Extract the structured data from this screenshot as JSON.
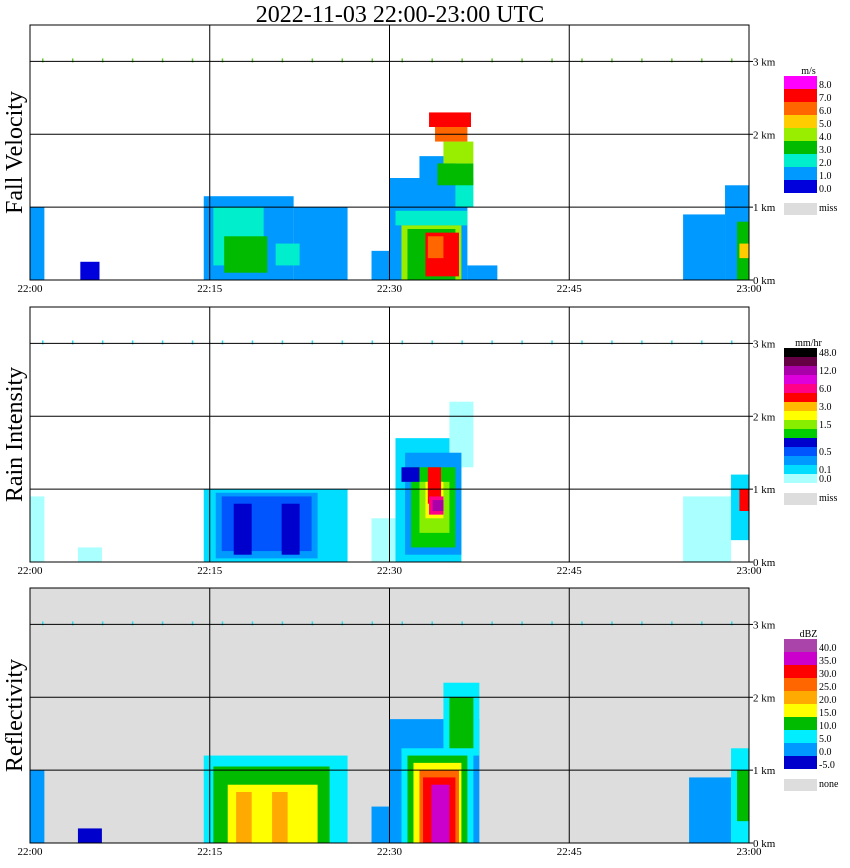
{
  "title": "2022-11-03   22:00-23:00 UTC",
  "x_ticks": [
    "22:00",
    "22:15",
    "22:30",
    "22:45",
    "23:00"
  ],
  "y_ticks": [
    "3 km",
    "2 km",
    "1 km",
    "0 km"
  ],
  "colors": {
    "missing": "#dddddd",
    "frame": "#000000"
  },
  "chart_data": [
    {
      "type": "heatmap",
      "ylabel": "Fall Velocity",
      "x_range": [
        "22:00",
        "23:00"
      ],
      "y_range_km": [
        0,
        3.5
      ],
      "grid": true,
      "legend": {
        "unit": "m/s",
        "bins": [
          {
            "label": "8.0",
            "color": "#ff00ff"
          },
          {
            "label": "7.0",
            "color": "#ff0000"
          },
          {
            "label": "6.0",
            "color": "#ff6600"
          },
          {
            "label": "5.0",
            "color": "#ffcc00"
          },
          {
            "label": "4.0",
            "color": "#99ee00"
          },
          {
            "label": "3.0",
            "color": "#00bb00"
          },
          {
            "label": "2.0",
            "color": "#00eecc"
          },
          {
            "label": "1.0",
            "color": "#0099ff"
          },
          {
            "label": "0.0",
            "color": "#0000dd"
          }
        ],
        "missing_label": "miss",
        "missing_color": "#dddddd"
      },
      "background": "#ffffff",
      "cells": [
        {
          "t": [
            0,
            1.2
          ],
          "h": [
            0,
            1.0
          ],
          "c": "#0099ff"
        },
        {
          "t": [
            4.2,
            5.8
          ],
          "h": [
            0,
            0.25
          ],
          "c": "#0000dd"
        },
        {
          "t": [
            14.5,
            22
          ],
          "h": [
            0,
            1.15
          ],
          "c": "#0099ff"
        },
        {
          "t": [
            22,
            26.5
          ],
          "h": [
            0,
            1.0
          ],
          "c": "#0099ff"
        },
        {
          "t": [
            15.3,
            19.5
          ],
          "h": [
            0.2,
            1.0
          ],
          "c": "#00eecc"
        },
        {
          "t": [
            16.2,
            19.8
          ],
          "h": [
            0.1,
            0.6
          ],
          "c": "#00bb00"
        },
        {
          "t": [
            20.5,
            22.5
          ],
          "h": [
            0.2,
            0.5
          ],
          "c": "#00eecc"
        },
        {
          "t": [
            28.5,
            30
          ],
          "h": [
            0,
            0.4
          ],
          "c": "#0099ff"
        },
        {
          "t": [
            30,
            36.5
          ],
          "h": [
            0,
            1.4
          ],
          "c": "#0099ff"
        },
        {
          "t": [
            32.5,
            35.5
          ],
          "h": [
            1.0,
            1.7
          ],
          "c": "#0099ff"
        },
        {
          "t": [
            35.5,
            37
          ],
          "h": [
            1.0,
            1.4
          ],
          "c": "#00eecc"
        },
        {
          "t": [
            30.5,
            36.5
          ],
          "h": [
            0.75,
            0.95
          ],
          "c": "#00eecc"
        },
        {
          "t": [
            31,
            36
          ],
          "h": [
            0,
            0.75
          ],
          "c": "#99ee00"
        },
        {
          "t": [
            31.5,
            35.5
          ],
          "h": [
            0,
            0.7
          ],
          "c": "#00bb00"
        },
        {
          "t": [
            33,
            35.8
          ],
          "h": [
            0.05,
            0.65
          ],
          "c": "#ff0000"
        },
        {
          "t": [
            33.2,
            34.5
          ],
          "h": [
            0.3,
            0.6
          ],
          "c": "#ff6600"
        },
        {
          "t": [
            34,
            37
          ],
          "h": [
            1.3,
            1.6
          ],
          "c": "#00bb00"
        },
        {
          "t": [
            34.5,
            37
          ],
          "h": [
            1.6,
            1.9
          ],
          "c": "#99ee00"
        },
        {
          "t": [
            33.8,
            36.5
          ],
          "h": [
            1.9,
            2.1
          ],
          "c": "#ff6600"
        },
        {
          "t": [
            33.3,
            36.8
          ],
          "h": [
            2.1,
            2.3
          ],
          "c": "#ff0000"
        },
        {
          "t": [
            36.5,
            39
          ],
          "h": [
            0,
            0.2
          ],
          "c": "#0099ff"
        },
        {
          "t": [
            54.5,
            58
          ],
          "h": [
            0,
            0.9
          ],
          "c": "#0099ff"
        },
        {
          "t": [
            58,
            60
          ],
          "h": [
            0,
            1.3
          ],
          "c": "#0099ff"
        },
        {
          "t": [
            59,
            60
          ],
          "h": [
            0,
            0.8
          ],
          "c": "#00bb00"
        },
        {
          "t": [
            59.2,
            60
          ],
          "h": [
            0.3,
            0.5
          ],
          "c": "#ffcc00"
        }
      ]
    },
    {
      "type": "heatmap",
      "ylabel": "Rain Intensity",
      "x_range": [
        "22:00",
        "23:00"
      ],
      "y_range_km": [
        0,
        3.5
      ],
      "grid": true,
      "legend": {
        "unit": "mm/hr",
        "bins": [
          {
            "label": "48.0",
            "color": "#000000"
          },
          {
            "label": "",
            "color": "#660044"
          },
          {
            "label": "12.0",
            "color": "#aa00aa"
          },
          {
            "label": "",
            "color": "#dd00dd"
          },
          {
            "label": "6.0",
            "color": "#ff0088"
          },
          {
            "label": "",
            "color": "#ff0000"
          },
          {
            "label": "3.0",
            "color": "#ffbb00"
          },
          {
            "label": "",
            "color": "#ffff00"
          },
          {
            "label": "1.5",
            "color": "#88ee00"
          },
          {
            "label": "",
            "color": "#00cc00"
          },
          {
            "label": "",
            "color": "#0000cc"
          },
          {
            "label": "0.5",
            "color": "#0055ff"
          },
          {
            "label": "",
            "color": "#0099ff"
          },
          {
            "label": "0.1",
            "color": "#00ddff"
          },
          {
            "label": "0.0",
            "color": "#aaffff"
          }
        ],
        "missing_label": "miss",
        "missing_color": "#dddddd"
      },
      "background": "#ffffff",
      "cells": [
        {
          "t": [
            0,
            1.2
          ],
          "h": [
            0,
            0.9
          ],
          "c": "#aaffff"
        },
        {
          "t": [
            4,
            6
          ],
          "h": [
            0,
            0.2
          ],
          "c": "#aaffff"
        },
        {
          "t": [
            14.5,
            26.5
          ],
          "h": [
            0,
            1.0
          ],
          "c": "#00ddff"
        },
        {
          "t": [
            15.5,
            24
          ],
          "h": [
            0.05,
            0.95
          ],
          "c": "#0099ff"
        },
        {
          "t": [
            16,
            23.5
          ],
          "h": [
            0.15,
            0.9
          ],
          "c": "#0055ff"
        },
        {
          "t": [
            17,
            18.5
          ],
          "h": [
            0.1,
            0.8
          ],
          "c": "#0000cc"
        },
        {
          "t": [
            21,
            22.5
          ],
          "h": [
            0.1,
            0.8
          ],
          "c": "#0000cc"
        },
        {
          "t": [
            28.5,
            30.5
          ],
          "h": [
            0,
            0.6
          ],
          "c": "#aaffff"
        },
        {
          "t": [
            30.5,
            36
          ],
          "h": [
            0,
            1.7
          ],
          "c": "#00ddff"
        },
        {
          "t": [
            35,
            37
          ],
          "h": [
            1.3,
            2.2
          ],
          "c": "#aaffff"
        },
        {
          "t": [
            31.3,
            36
          ],
          "h": [
            0.1,
            1.5
          ],
          "c": "#0099ff"
        },
        {
          "t": [
            31.8,
            35.5
          ],
          "h": [
            0.2,
            1.3
          ],
          "c": "#00cc00"
        },
        {
          "t": [
            32.5,
            35
          ],
          "h": [
            0.4,
            1.1
          ],
          "c": "#88ee00"
        },
        {
          "t": [
            33,
            34.5
          ],
          "h": [
            0.6,
            1.1
          ],
          "c": "#ffff00"
        },
        {
          "t": [
            33.2,
            34.3
          ],
          "h": [
            0.8,
            1.3
          ],
          "c": "#ff0000"
        },
        {
          "t": [
            33.3,
            34.5
          ],
          "h": [
            0.65,
            0.9
          ],
          "c": "#ff0088"
        },
        {
          "t": [
            33.6,
            34.5
          ],
          "h": [
            0.7,
            0.85
          ],
          "c": "#aa00aa"
        },
        {
          "t": [
            31,
            32.5
          ],
          "h": [
            1.1,
            1.3
          ],
          "c": "#0000cc"
        },
        {
          "t": [
            54.5,
            58.5
          ],
          "h": [
            0,
            0.9
          ],
          "c": "#aaffff"
        },
        {
          "t": [
            58.5,
            60
          ],
          "h": [
            0.3,
            1.2
          ],
          "c": "#00ddff"
        },
        {
          "t": [
            59.2,
            60
          ],
          "h": [
            0.7,
            1.0
          ],
          "c": "#ff0000"
        }
      ]
    },
    {
      "type": "heatmap",
      "ylabel": "Reflectivity",
      "x_range": [
        "22:00",
        "23:00"
      ],
      "y_range_km": [
        0,
        3.5
      ],
      "grid": true,
      "legend": {
        "unit": "dBZ",
        "bins": [
          {
            "label": "40.0",
            "color": "#aa44aa"
          },
          {
            "label": "35.0",
            "color": "#cc00cc"
          },
          {
            "label": "30.0",
            "color": "#ff0000"
          },
          {
            "label": "25.0",
            "color": "#ff6600"
          },
          {
            "label": "20.0",
            "color": "#ffaa00"
          },
          {
            "label": "15.0",
            "color": "#ffff00"
          },
          {
            "label": "10.0",
            "color": "#00bb00"
          },
          {
            "label": "5.0",
            "color": "#00eeff"
          },
          {
            "label": "0.0",
            "color": "#0099ff"
          },
          {
            "label": "-5.0",
            "color": "#0000cc"
          }
        ],
        "missing_label": "none",
        "missing_color": "#dddddd"
      },
      "background": "#dddddd",
      "cells": [
        {
          "t": [
            0,
            1.2
          ],
          "h": [
            0,
            1.0
          ],
          "c": "#0099ff"
        },
        {
          "t": [
            4,
            6
          ],
          "h": [
            0,
            0.2
          ],
          "c": "#0000cc"
        },
        {
          "t": [
            14.5,
            26.5
          ],
          "h": [
            0,
            1.2
          ],
          "c": "#00eeff"
        },
        {
          "t": [
            15.3,
            25
          ],
          "h": [
            0,
            1.05
          ],
          "c": "#00bb00"
        },
        {
          "t": [
            16.5,
            24
          ],
          "h": [
            0,
            0.8
          ],
          "c": "#ffff00"
        },
        {
          "t": [
            17.2,
            18.5
          ],
          "h": [
            0,
            0.7
          ],
          "c": "#ffaa00"
        },
        {
          "t": [
            20.2,
            21.5
          ],
          "h": [
            0,
            0.7
          ],
          "c": "#ffaa00"
        },
        {
          "t": [
            28.5,
            30.5
          ],
          "h": [
            0,
            0.5
          ],
          "c": "#0099ff"
        },
        {
          "t": [
            30,
            37.5
          ],
          "h": [
            0,
            1.7
          ],
          "c": "#0099ff"
        },
        {
          "t": [
            31,
            37
          ],
          "h": [
            0,
            1.3
          ],
          "c": "#00eeff"
        },
        {
          "t": [
            34.5,
            37.5
          ],
          "h": [
            1.2,
            2.2
          ],
          "c": "#00eeff"
        },
        {
          "t": [
            35,
            37
          ],
          "h": [
            1.3,
            2.0
          ],
          "c": "#00bb00"
        },
        {
          "t": [
            31.5,
            36.5
          ],
          "h": [
            0,
            1.2
          ],
          "c": "#00bb00"
        },
        {
          "t": [
            32,
            36
          ],
          "h": [
            0,
            1.1
          ],
          "c": "#ffff00"
        },
        {
          "t": [
            32.5,
            35.8
          ],
          "h": [
            0,
            1.0
          ],
          "c": "#ff6600"
        },
        {
          "t": [
            32.8,
            35.5
          ],
          "h": [
            0,
            0.9
          ],
          "c": "#ff0000"
        },
        {
          "t": [
            33.5,
            35
          ],
          "h": [
            0,
            0.8
          ],
          "c": "#cc00cc"
        },
        {
          "t": [
            55,
            58.5
          ],
          "h": [
            0,
            0.9
          ],
          "c": "#0099ff"
        },
        {
          "t": [
            58.5,
            60
          ],
          "h": [
            0,
            1.3
          ],
          "c": "#00eeff"
        },
        {
          "t": [
            59,
            60
          ],
          "h": [
            0.3,
            1.0
          ],
          "c": "#00bb00"
        }
      ]
    }
  ]
}
